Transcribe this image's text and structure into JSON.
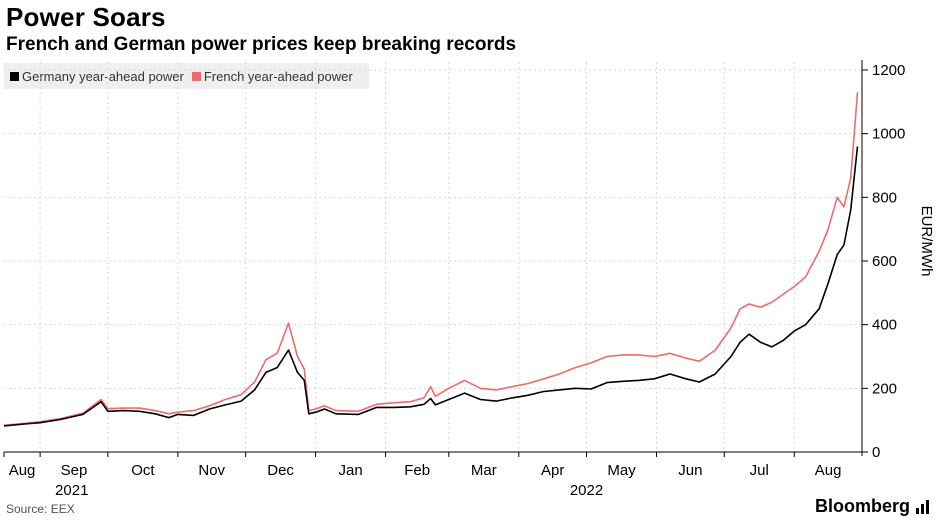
{
  "header": {
    "title": "Power Soars",
    "subtitle": "French and German power prices keep breaking records"
  },
  "footer": {
    "source": "Source: EEX",
    "brand": "Bloomberg"
  },
  "colors": {
    "germany": "#000000",
    "france": "#ef6b6b",
    "grid": "#d6d6d6",
    "legend_bg": "#efefef"
  },
  "chart_data": {
    "type": "line",
    "title": "Power Soars",
    "subtitle": "French and German power prices keep breaking records",
    "ylabel": "EUR/MWh",
    "ylim": [
      0,
      1200
    ],
    "yticks": [
      0,
      200,
      400,
      600,
      800,
      1000,
      1200
    ],
    "xlim": [
      "2021-08-16",
      "2022-08-31"
    ],
    "month_ticks": [
      {
        "label": "Aug",
        "date": "2021-08-16"
      },
      {
        "label": "Sep",
        "date": "2021-09-01"
      },
      {
        "label": "Oct",
        "date": "2021-10-01"
      },
      {
        "label": "Nov",
        "date": "2021-11-01"
      },
      {
        "label": "Dec",
        "date": "2021-12-01"
      },
      {
        "label": "Jan",
        "date": "2022-01-01"
      },
      {
        "label": "Feb",
        "date": "2022-02-01"
      },
      {
        "label": "Mar",
        "date": "2022-03-01"
      },
      {
        "label": "Apr",
        "date": "2022-04-01"
      },
      {
        "label": "May",
        "date": "2022-05-01"
      },
      {
        "label": "Jun",
        "date": "2022-06-01"
      },
      {
        "label": "Jul",
        "date": "2022-07-01"
      },
      {
        "label": "Aug",
        "date": "2022-08-01"
      }
    ],
    "year_labels": [
      {
        "label": "2021",
        "date": "2021-09-15"
      },
      {
        "label": "2022",
        "date": "2022-05-01"
      }
    ],
    "legend_position": "top-left",
    "grid": true,
    "series": [
      {
        "name": "Germany year-ahead power",
        "color": "#000000",
        "points": [
          [
            "2021-08-16",
            82
          ],
          [
            "2021-08-25",
            88
          ],
          [
            "2021-09-01",
            92
          ],
          [
            "2021-09-10",
            102
          ],
          [
            "2021-09-20",
            118
          ],
          [
            "2021-09-28",
            158
          ],
          [
            "2021-10-01",
            128
          ],
          [
            "2021-10-08",
            130
          ],
          [
            "2021-10-15",
            128
          ],
          [
            "2021-10-22",
            120
          ],
          [
            "2021-10-28",
            108
          ],
          [
            "2021-11-01",
            118
          ],
          [
            "2021-11-08",
            115
          ],
          [
            "2021-11-15",
            135
          ],
          [
            "2021-11-22",
            148
          ],
          [
            "2021-11-29",
            160
          ],
          [
            "2021-12-05",
            195
          ],
          [
            "2021-12-10",
            250
          ],
          [
            "2021-12-15",
            265
          ],
          [
            "2021-12-20",
            320
          ],
          [
            "2021-12-24",
            250
          ],
          [
            "2021-12-27",
            225
          ],
          [
            "2021-12-29",
            120
          ],
          [
            "2022-01-01",
            125
          ],
          [
            "2022-01-05",
            135
          ],
          [
            "2022-01-10",
            120
          ],
          [
            "2022-01-20",
            118
          ],
          [
            "2022-01-28",
            140
          ],
          [
            "2022-02-05",
            140
          ],
          [
            "2022-02-12",
            142
          ],
          [
            "2022-02-18",
            150
          ],
          [
            "2022-02-21",
            168
          ],
          [
            "2022-02-23",
            148
          ],
          [
            "2022-03-01",
            165
          ],
          [
            "2022-03-08",
            185
          ],
          [
            "2022-03-15",
            165
          ],
          [
            "2022-03-22",
            160
          ],
          [
            "2022-03-29",
            170
          ],
          [
            "2022-04-05",
            178
          ],
          [
            "2022-04-12",
            190
          ],
          [
            "2022-04-19",
            195
          ],
          [
            "2022-04-26",
            200
          ],
          [
            "2022-05-03",
            198
          ],
          [
            "2022-05-10",
            218
          ],
          [
            "2022-05-17",
            222
          ],
          [
            "2022-05-24",
            225
          ],
          [
            "2022-05-31",
            230
          ],
          [
            "2022-06-07",
            245
          ],
          [
            "2022-06-14",
            230
          ],
          [
            "2022-06-20",
            220
          ],
          [
            "2022-06-27",
            245
          ],
          [
            "2022-07-04",
            300
          ],
          [
            "2022-07-08",
            345
          ],
          [
            "2022-07-12",
            370
          ],
          [
            "2022-07-17",
            345
          ],
          [
            "2022-07-22",
            330
          ],
          [
            "2022-07-27",
            350
          ],
          [
            "2022-08-01",
            380
          ],
          [
            "2022-08-06",
            400
          ],
          [
            "2022-08-12",
            450
          ],
          [
            "2022-08-16",
            530
          ],
          [
            "2022-08-20",
            620
          ],
          [
            "2022-08-23",
            650
          ],
          [
            "2022-08-26",
            760
          ],
          [
            "2022-08-29",
            960
          ]
        ]
      },
      {
        "name": "French year-ahead power",
        "color": "#ef6b6b",
        "points": [
          [
            "2021-08-16",
            84
          ],
          [
            "2021-08-25",
            90
          ],
          [
            "2021-09-01",
            95
          ],
          [
            "2021-09-10",
            105
          ],
          [
            "2021-09-20",
            122
          ],
          [
            "2021-09-28",
            165
          ],
          [
            "2021-10-01",
            136
          ],
          [
            "2021-10-08",
            138
          ],
          [
            "2021-10-15",
            138
          ],
          [
            "2021-10-22",
            130
          ],
          [
            "2021-10-28",
            120
          ],
          [
            "2021-11-01",
            125
          ],
          [
            "2021-11-08",
            130
          ],
          [
            "2021-11-15",
            145
          ],
          [
            "2021-11-22",
            165
          ],
          [
            "2021-11-29",
            180
          ],
          [
            "2021-12-05",
            220
          ],
          [
            "2021-12-10",
            290
          ],
          [
            "2021-12-15",
            310
          ],
          [
            "2021-12-20",
            405
          ],
          [
            "2021-12-24",
            300
          ],
          [
            "2021-12-27",
            260
          ],
          [
            "2021-12-29",
            130
          ],
          [
            "2022-01-01",
            135
          ],
          [
            "2022-01-05",
            145
          ],
          [
            "2022-01-10",
            130
          ],
          [
            "2022-01-20",
            128
          ],
          [
            "2022-01-28",
            150
          ],
          [
            "2022-02-05",
            155
          ],
          [
            "2022-02-12",
            158
          ],
          [
            "2022-02-18",
            170
          ],
          [
            "2022-02-21",
            205
          ],
          [
            "2022-02-23",
            175
          ],
          [
            "2022-03-01",
            200
          ],
          [
            "2022-03-08",
            225
          ],
          [
            "2022-03-15",
            200
          ],
          [
            "2022-03-22",
            195
          ],
          [
            "2022-03-29",
            205
          ],
          [
            "2022-04-05",
            215
          ],
          [
            "2022-04-12",
            230
          ],
          [
            "2022-04-19",
            245
          ],
          [
            "2022-04-26",
            265
          ],
          [
            "2022-05-03",
            280
          ],
          [
            "2022-05-10",
            300
          ],
          [
            "2022-05-17",
            305
          ],
          [
            "2022-05-24",
            305
          ],
          [
            "2022-05-31",
            300
          ],
          [
            "2022-06-07",
            310
          ],
          [
            "2022-06-14",
            295
          ],
          [
            "2022-06-20",
            285
          ],
          [
            "2022-06-27",
            320
          ],
          [
            "2022-07-04",
            390
          ],
          [
            "2022-07-08",
            450
          ],
          [
            "2022-07-12",
            465
          ],
          [
            "2022-07-17",
            455
          ],
          [
            "2022-07-22",
            470
          ],
          [
            "2022-07-27",
            495
          ],
          [
            "2022-08-01",
            520
          ],
          [
            "2022-08-06",
            550
          ],
          [
            "2022-08-12",
            630
          ],
          [
            "2022-08-16",
            700
          ],
          [
            "2022-08-20",
            800
          ],
          [
            "2022-08-23",
            770
          ],
          [
            "2022-08-26",
            860
          ],
          [
            "2022-08-29",
            1130
          ]
        ]
      }
    ]
  }
}
